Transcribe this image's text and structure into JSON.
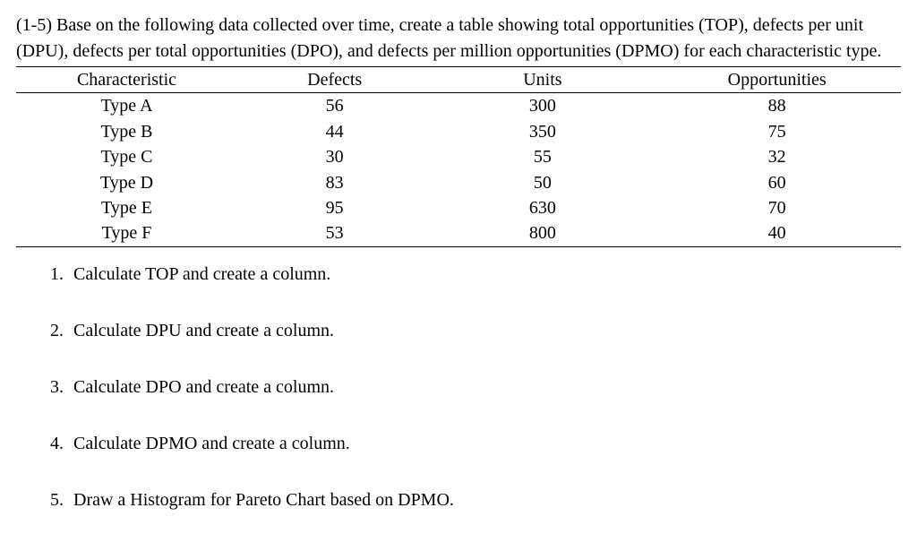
{
  "intro": "(1-5) Base on the following data collected over time, create a table showing total opportunities (TOP), defects per unit (DPU), defects per total opportunities (DPO), and defects per million opportunities (DPMO) for each characteristic type.",
  "table": {
    "columns": [
      "Characteristic",
      "Defects",
      "Units",
      "Opportunities"
    ],
    "rows": [
      [
        "Type A",
        "56",
        "300",
        "88"
      ],
      [
        "Type B",
        "44",
        "350",
        "75"
      ],
      [
        "Type C",
        "30",
        "55",
        "32"
      ],
      [
        "Type D",
        "83",
        "50",
        "60"
      ],
      [
        "Type E",
        "95",
        "630",
        "70"
      ],
      [
        "Type F",
        "53",
        "800",
        "40"
      ]
    ],
    "border_color": "#000000",
    "background_color": "#ffffff",
    "font_family": "Times New Roman",
    "font_size_pt": 15,
    "column_align": [
      "center",
      "center",
      "center",
      "center"
    ]
  },
  "questions": [
    "Calculate TOP and create a column.",
    "Calculate DPU and create a column.",
    "Calculate DPO and create a column.",
    "Calculate DPMO and create a column.",
    "Draw a Histogram for Pareto Chart based on DPMO."
  ],
  "text_color": "#000000",
  "background_color": "#ffffff"
}
